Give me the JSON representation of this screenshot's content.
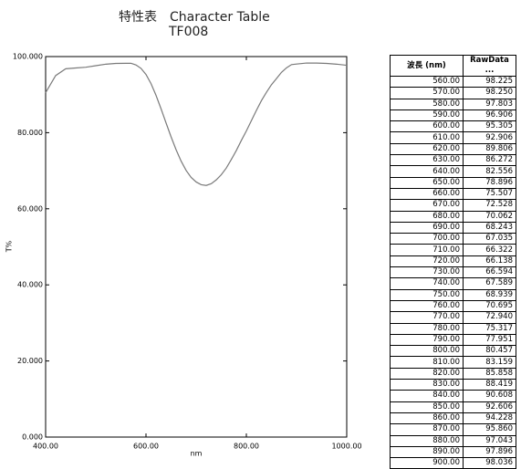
{
  "header": {
    "title": "特性表　Character Table",
    "subtitle": "TF008"
  },
  "chart_data": {
    "type": "line",
    "x_label": "nm",
    "y_label": "T%",
    "x": [
      400,
      420,
      440,
      460,
      480,
      500,
      520,
      540,
      560,
      570,
      580,
      590,
      600,
      610,
      620,
      630,
      640,
      650,
      660,
      670,
      680,
      690,
      700,
      710,
      720,
      730,
      740,
      750,
      760,
      770,
      780,
      790,
      800,
      810,
      820,
      830,
      840,
      850,
      860,
      870,
      880,
      890,
      900,
      920,
      940,
      960,
      980,
      1000
    ],
    "series": [
      {
        "color": "#7a7a7a",
        "values": [
          90.5,
          95,
          96.8,
          97,
          97.2,
          97.6,
          98,
          98.2,
          98.225,
          98.25,
          97.803,
          96.906,
          95.305,
          92.906,
          89.806,
          86.272,
          82.556,
          78.896,
          75.507,
          72.528,
          70.062,
          68.243,
          67.035,
          66.322,
          66.138,
          66.594,
          67.589,
          68.939,
          70.695,
          72.94,
          75.317,
          77.951,
          80.457,
          83.159,
          85.858,
          88.419,
          90.608,
          92.606,
          94.228,
          95.86,
          97.043,
          97.896,
          98.036,
          98.3,
          98.3,
          98.2,
          98,
          97.7
        ]
      }
    ],
    "xlim": [
      400,
      1000
    ],
    "xticks": [
      {
        "value": 400,
        "label": "400.00"
      },
      {
        "value": 600,
        "label": "600.00"
      },
      {
        "value": 800,
        "label": "800.00"
      },
      {
        "value": 1000,
        "label": "1000.00"
      }
    ],
    "ylim": [
      0,
      100
    ],
    "yticks": [
      {
        "value": 0,
        "label": "0.000"
      },
      {
        "value": 20,
        "label": "20.000"
      },
      {
        "value": 40,
        "label": "40.000"
      },
      {
        "value": 60,
        "label": "60.000"
      },
      {
        "value": 80,
        "label": "80.000"
      },
      {
        "value": 100,
        "label": "100.000"
      }
    ]
  },
  "table": {
    "columns": [
      "波長 (nm)",
      "RawData ..."
    ],
    "rows": [
      [
        "560.00",
        "98.225"
      ],
      [
        "570.00",
        "98.250"
      ],
      [
        "580.00",
        "97.803"
      ],
      [
        "590.00",
        "96.906"
      ],
      [
        "600.00",
        "95.305"
      ],
      [
        "610.00",
        "92.906"
      ],
      [
        "620.00",
        "89.806"
      ],
      [
        "630.00",
        "86.272"
      ],
      [
        "640.00",
        "82.556"
      ],
      [
        "650.00",
        "78.896"
      ],
      [
        "660.00",
        "75.507"
      ],
      [
        "670.00",
        "72.528"
      ],
      [
        "680.00",
        "70.062"
      ],
      [
        "690.00",
        "68.243"
      ],
      [
        "700.00",
        "67.035"
      ],
      [
        "710.00",
        "66.322"
      ],
      [
        "720.00",
        "66.138"
      ],
      [
        "730.00",
        "66.594"
      ],
      [
        "740.00",
        "67.589"
      ],
      [
        "750.00",
        "68.939"
      ],
      [
        "760.00",
        "70.695"
      ],
      [
        "770.00",
        "72.940"
      ],
      [
        "780.00",
        "75.317"
      ],
      [
        "790.00",
        "77.951"
      ],
      [
        "800.00",
        "80.457"
      ],
      [
        "810.00",
        "83.159"
      ],
      [
        "820.00",
        "85.858"
      ],
      [
        "830.00",
        "88.419"
      ],
      [
        "840.00",
        "90.608"
      ],
      [
        "850.00",
        "92.606"
      ],
      [
        "860.00",
        "94.228"
      ],
      [
        "870.00",
        "95.860"
      ],
      [
        "880.00",
        "97.043"
      ],
      [
        "890.00",
        "97.896"
      ],
      [
        "900.00",
        "98.036"
      ]
    ]
  }
}
